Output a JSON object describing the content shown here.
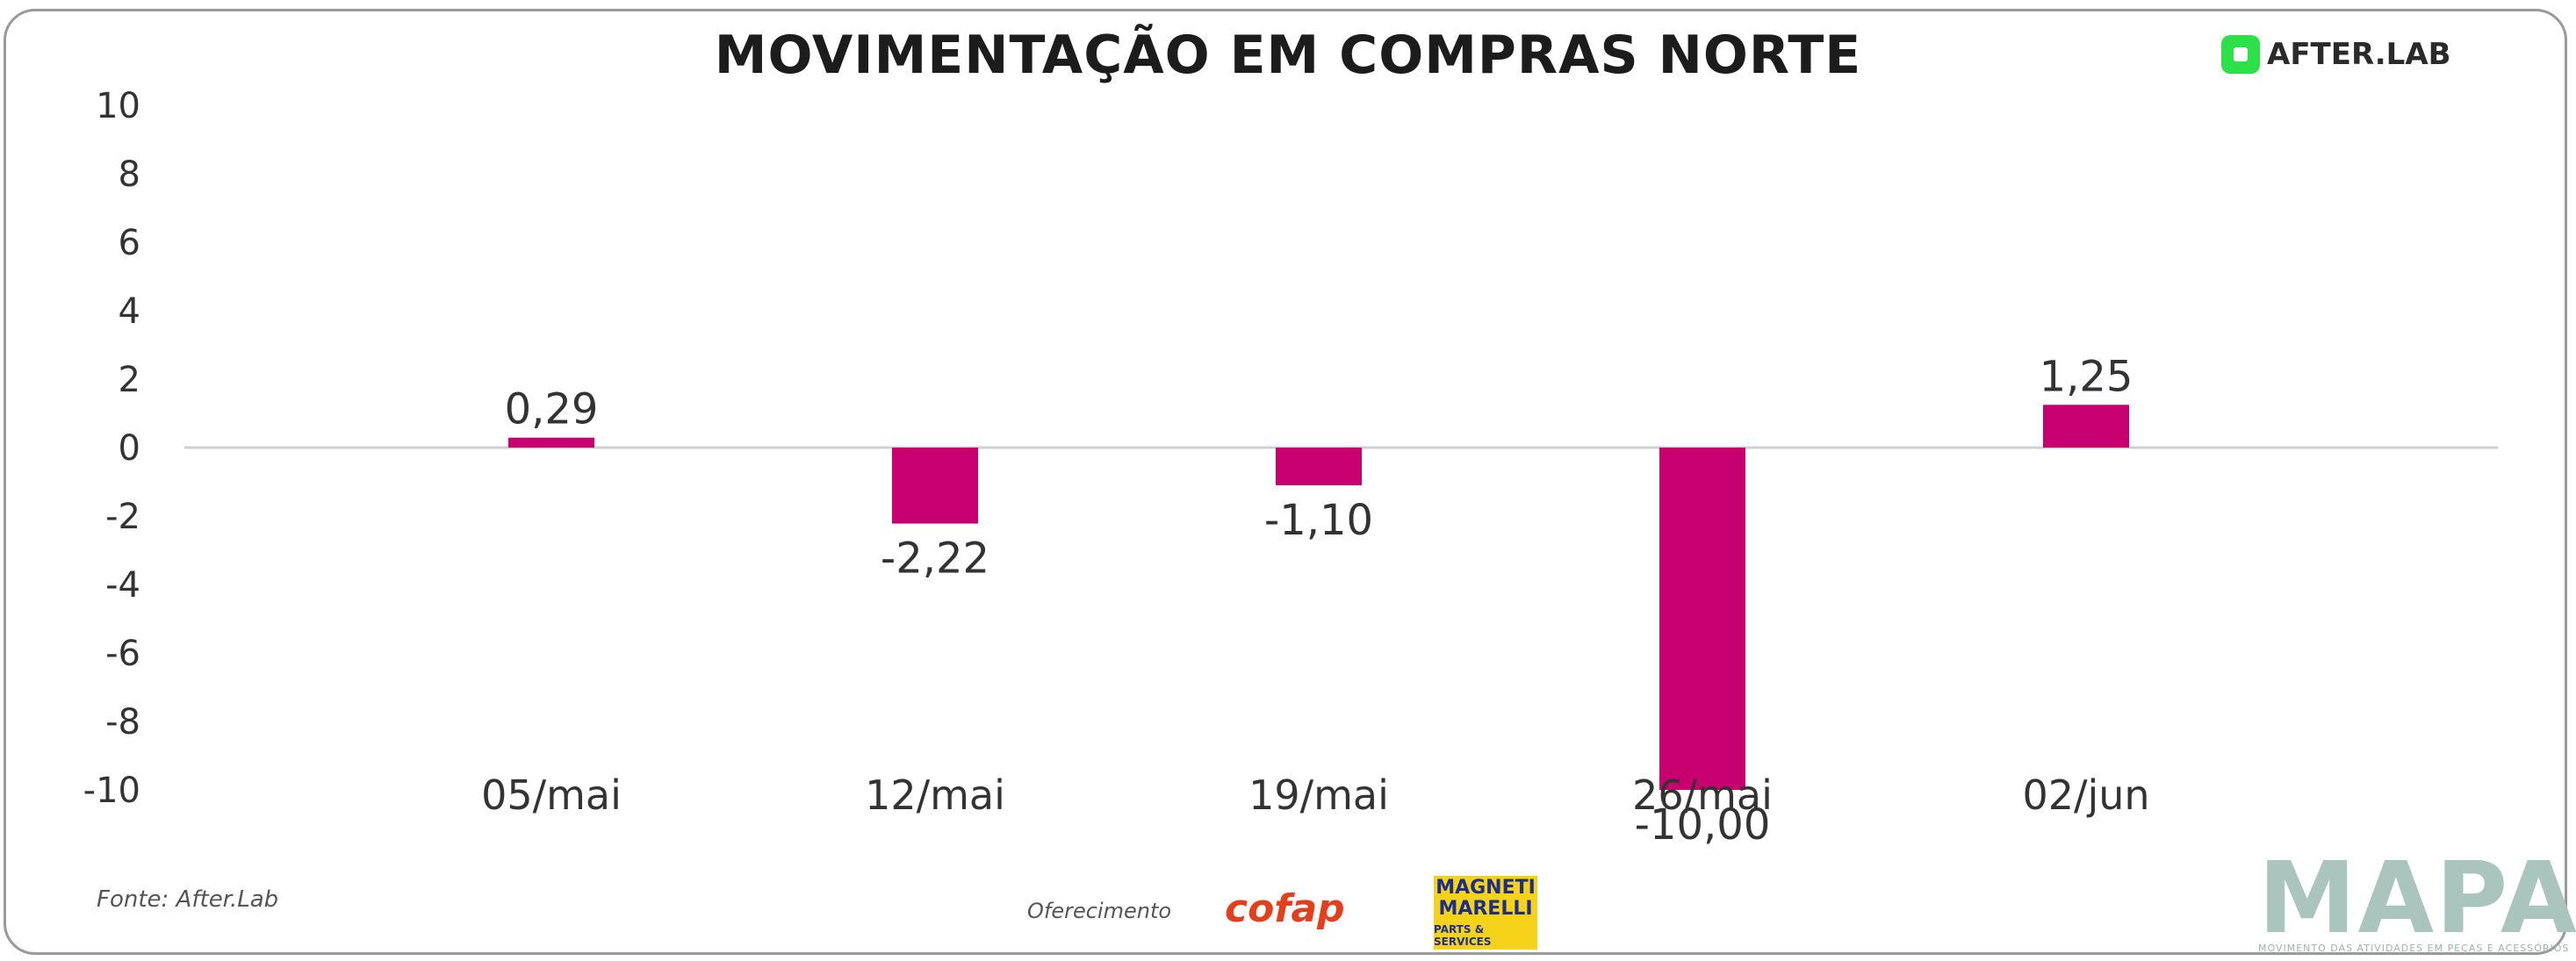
{
  "header": {
    "title": "MOVIMENTAÇÃO EM COMPRAS NORTE",
    "brand": "AFTER.LAB"
  },
  "chart_data": {
    "type": "bar",
    "title": "MOVIMENTAÇÃO EM COMPRAS NORTE",
    "xlabel": "",
    "ylabel": "",
    "categories": [
      "05/mai",
      "12/mai",
      "19/mai",
      "26/mai",
      "02/jun"
    ],
    "values": [
      0.29,
      -2.22,
      -1.1,
      -10.0,
      1.25
    ],
    "value_labels": [
      "0,29",
      "-2,22",
      "-1,10",
      "-10,00",
      "1,25"
    ],
    "ylim": [
      -10,
      10
    ],
    "y_ticks": [
      10,
      8,
      6,
      4,
      2,
      0,
      -2,
      -4,
      -6,
      -8,
      -10
    ],
    "grid": false,
    "legend": "none",
    "bar_color": "#c8006f",
    "axis_color": "#cfcfcf"
  },
  "footer": {
    "source": "Fonte: After.Lab",
    "sponsor_label": "Oferecimento",
    "sponsor_1": "cofap",
    "sponsor_2_main": "MAGNETI MARELLI",
    "sponsor_2_sub": "PARTS & SERVICES",
    "mapa": "MAPA",
    "mapa_sub": "MOVIMENTO DAS ATIVIDADES EM PEÇAS E ACESSÓRIOS"
  }
}
